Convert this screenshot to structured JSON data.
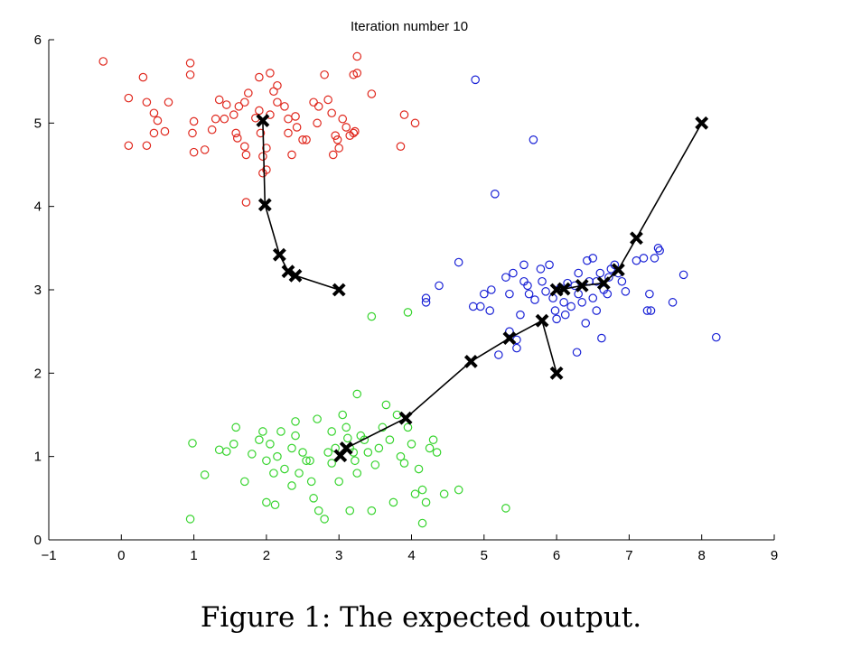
{
  "chart_data": {
    "type": "scatter",
    "title": "Iteration number 10",
    "xlabel": "",
    "ylabel": "",
    "xlim": [
      -1,
      9
    ],
    "ylim": [
      0,
      6
    ],
    "xticks": [
      "−1",
      "0",
      "1",
      "2",
      "3",
      "4",
      "5",
      "6",
      "7",
      "8",
      "9"
    ],
    "yticks": [
      "0",
      "1",
      "2",
      "3",
      "4",
      "5",
      "6"
    ],
    "grid": false,
    "marker": "open-circle",
    "series": [
      {
        "color": "#e0281e",
        "points": [
          [
            -0.25,
            5.74
          ],
          [
            0.3,
            5.55
          ],
          [
            0.95,
            5.72
          ],
          [
            0.95,
            5.58
          ],
          [
            0.1,
            5.3
          ],
          [
            0.35,
            5.25
          ],
          [
            0.65,
            5.25
          ],
          [
            0.45,
            5.12
          ],
          [
            0.5,
            5.03
          ],
          [
            0.6,
            4.9
          ],
          [
            0.45,
            4.88
          ],
          [
            0.35,
            4.73
          ],
          [
            0.1,
            4.73
          ],
          [
            1.0,
            5.02
          ],
          [
            0.98,
            4.88
          ],
          [
            1.0,
            4.65
          ],
          [
            1.15,
            4.68
          ],
          [
            1.25,
            4.92
          ],
          [
            1.35,
            5.28
          ],
          [
            1.45,
            5.22
          ],
          [
            1.3,
            5.05
          ],
          [
            1.42,
            5.05
          ],
          [
            1.55,
            5.1
          ],
          [
            1.62,
            5.2
          ],
          [
            1.75,
            5.36
          ],
          [
            1.7,
            5.25
          ],
          [
            1.9,
            5.55
          ],
          [
            1.9,
            5.15
          ],
          [
            1.58,
            4.88
          ],
          [
            1.6,
            4.82
          ],
          [
            1.7,
            4.72
          ],
          [
            1.72,
            4.62
          ],
          [
            1.92,
            4.88
          ],
          [
            1.85,
            5.06
          ],
          [
            1.95,
            4.6
          ],
          [
            2.05,
            5.6
          ],
          [
            2.15,
            5.45
          ],
          [
            2.1,
            5.38
          ],
          [
            2.15,
            5.25
          ],
          [
            2.25,
            5.2
          ],
          [
            2.05,
            5.1
          ],
          [
            2.3,
            5.05
          ],
          [
            2.4,
            5.08
          ],
          [
            2.42,
            4.95
          ],
          [
            2.3,
            4.88
          ],
          [
            2.5,
            4.8
          ],
          [
            2.0,
            4.7
          ],
          [
            2.35,
            4.62
          ],
          [
            2.0,
            4.44
          ],
          [
            1.95,
            4.4
          ],
          [
            2.65,
            5.25
          ],
          [
            2.72,
            5.2
          ],
          [
            2.85,
            5.28
          ],
          [
            2.9,
            5.12
          ],
          [
            2.7,
            5.0
          ],
          [
            2.55,
            4.8
          ],
          [
            2.95,
            4.85
          ],
          [
            2.98,
            4.8
          ],
          [
            3.05,
            5.05
          ],
          [
            3.1,
            4.95
          ],
          [
            3.2,
            4.88
          ],
          [
            3.15,
            4.85
          ],
          [
            3.22,
            4.9
          ],
          [
            2.92,
            4.62
          ],
          [
            3.0,
            4.7
          ],
          [
            2.8,
            5.58
          ],
          [
            3.2,
            5.58
          ],
          [
            3.25,
            5.6
          ],
          [
            3.25,
            5.8
          ],
          [
            3.45,
            5.35
          ],
          [
            3.9,
            5.1
          ],
          [
            4.05,
            5.0
          ],
          [
            3.85,
            4.72
          ],
          [
            1.72,
            4.05
          ]
        ]
      },
      {
        "color": "#1a22d6",
        "points": [
          [
            4.88,
            5.52
          ],
          [
            5.68,
            4.8
          ],
          [
            5.15,
            4.15
          ],
          [
            4.2,
            2.9
          ],
          [
            4.2,
            2.85
          ],
          [
            4.38,
            3.05
          ],
          [
            4.65,
            3.33
          ],
          [
            4.85,
            2.8
          ],
          [
            4.95,
            2.8
          ],
          [
            5.0,
            2.95
          ],
          [
            5.08,
            2.75
          ],
          [
            5.1,
            3.0
          ],
          [
            5.2,
            2.22
          ],
          [
            5.3,
            3.15
          ],
          [
            5.35,
            2.95
          ],
          [
            5.4,
            3.2
          ],
          [
            5.35,
            2.5
          ],
          [
            5.45,
            2.4
          ],
          [
            5.45,
            2.3
          ],
          [
            5.5,
            2.7
          ],
          [
            5.55,
            3.1
          ],
          [
            5.6,
            3.05
          ],
          [
            5.55,
            3.3
          ],
          [
            5.62,
            2.95
          ],
          [
            5.7,
            2.88
          ],
          [
            5.78,
            3.25
          ],
          [
            5.8,
            3.1
          ],
          [
            5.85,
            2.98
          ],
          [
            5.9,
            3.3
          ],
          [
            5.95,
            2.9
          ],
          [
            5.98,
            2.75
          ],
          [
            6.0,
            2.65
          ],
          [
            6.05,
            3.02
          ],
          [
            6.1,
            2.85
          ],
          [
            6.12,
            2.7
          ],
          [
            6.2,
            2.8
          ],
          [
            6.25,
            3.05
          ],
          [
            6.3,
            3.2
          ],
          [
            6.3,
            2.95
          ],
          [
            6.35,
            2.85
          ],
          [
            6.4,
            2.6
          ],
          [
            6.42,
            3.35
          ],
          [
            6.45,
            3.1
          ],
          [
            6.5,
            2.9
          ],
          [
            6.55,
            2.75
          ],
          [
            6.6,
            3.2
          ],
          [
            6.65,
            3.0
          ],
          [
            6.7,
            2.95
          ],
          [
            6.72,
            3.15
          ],
          [
            6.75,
            3.25
          ],
          [
            6.8,
            3.3
          ],
          [
            6.85,
            3.2
          ],
          [
            6.9,
            3.1
          ],
          [
            6.95,
            2.98
          ],
          [
            6.62,
            2.42
          ],
          [
            6.28,
            2.25
          ],
          [
            7.1,
            3.35
          ],
          [
            7.2,
            3.38
          ],
          [
            7.28,
            2.95
          ],
          [
            7.25,
            2.75
          ],
          [
            7.3,
            2.75
          ],
          [
            7.35,
            3.38
          ],
          [
            7.42,
            3.47
          ],
          [
            7.4,
            3.5
          ],
          [
            7.6,
            2.85
          ],
          [
            7.75,
            3.18
          ],
          [
            8.2,
            2.43
          ],
          [
            6.5,
            3.38
          ],
          [
            6.55,
            3.1
          ],
          [
            6.15,
            3.08
          ]
        ]
      },
      {
        "color": "#37d42e",
        "points": [
          [
            0.98,
            1.16
          ],
          [
            0.95,
            0.25
          ],
          [
            1.15,
            0.78
          ],
          [
            1.35,
            1.08
          ],
          [
            1.45,
            1.06
          ],
          [
            1.55,
            1.15
          ],
          [
            1.58,
            1.35
          ],
          [
            1.7,
            0.7
          ],
          [
            1.8,
            1.03
          ],
          [
            1.9,
            1.2
          ],
          [
            1.95,
            1.3
          ],
          [
            2.05,
            1.15
          ],
          [
            2.0,
            0.95
          ],
          [
            2.1,
            0.8
          ],
          [
            2.15,
            1.0
          ],
          [
            2.2,
            1.3
          ],
          [
            2.25,
            0.85
          ],
          [
            2.35,
            0.65
          ],
          [
            2.4,
            1.25
          ],
          [
            2.4,
            1.42
          ],
          [
            2.45,
            0.8
          ],
          [
            2.5,
            1.05
          ],
          [
            2.55,
            0.95
          ],
          [
            2.6,
            0.95
          ],
          [
            2.62,
            0.7
          ],
          [
            2.65,
            0.5
          ],
          [
            2.7,
            1.45
          ],
          [
            2.72,
            0.35
          ],
          [
            2.8,
            0.25
          ],
          [
            2.85,
            1.05
          ],
          [
            2.9,
            0.92
          ],
          [
            2.95,
            1.1
          ],
          [
            3.0,
            0.7
          ],
          [
            3.05,
            1.5
          ],
          [
            3.1,
            1.35
          ],
          [
            3.12,
            1.22
          ],
          [
            3.15,
            1.1
          ],
          [
            3.2,
            1.05
          ],
          [
            3.25,
            0.8
          ],
          [
            3.3,
            1.25
          ],
          [
            3.35,
            1.2
          ],
          [
            3.4,
            1.05
          ],
          [
            3.45,
            0.35
          ],
          [
            3.5,
            0.9
          ],
          [
            3.55,
            1.1
          ],
          [
            3.6,
            1.35
          ],
          [
            3.65,
            1.62
          ],
          [
            3.7,
            1.2
          ],
          [
            3.75,
            0.45
          ],
          [
            3.8,
            1.5
          ],
          [
            3.85,
            1.0
          ],
          [
            3.9,
            0.92
          ],
          [
            3.95,
            1.35
          ],
          [
            4.0,
            1.15
          ],
          [
            4.05,
            0.55
          ],
          [
            4.1,
            0.85
          ],
          [
            4.15,
            0.6
          ],
          [
            4.2,
            0.45
          ],
          [
            4.25,
            1.1
          ],
          [
            4.3,
            1.2
          ],
          [
            4.35,
            1.05
          ],
          [
            4.45,
            0.55
          ],
          [
            4.65,
            0.6
          ],
          [
            4.15,
            0.2
          ],
          [
            5.3,
            0.38
          ],
          [
            3.45,
            2.68
          ],
          [
            3.95,
            2.73
          ],
          [
            3.25,
            1.75
          ],
          [
            2.0,
            0.45
          ],
          [
            2.12,
            0.42
          ],
          [
            3.15,
            0.35
          ],
          [
            3.22,
            0.95
          ],
          [
            2.35,
            1.1
          ],
          [
            2.9,
            1.3
          ]
        ]
      }
    ],
    "centroid_paths": [
      {
        "points": [
          [
            3.0,
            3.0
          ],
          [
            2.4,
            3.17
          ],
          [
            2.3,
            3.22
          ],
          [
            2.18,
            3.42
          ],
          [
            1.98,
            4.02
          ],
          [
            1.95,
            5.03
          ]
        ]
      },
      {
        "points": [
          [
            8.0,
            5.0
          ],
          [
            7.1,
            3.62
          ],
          [
            6.85,
            3.24
          ],
          [
            6.65,
            3.08
          ],
          [
            6.35,
            3.05
          ],
          [
            6.1,
            3.01
          ],
          [
            6.0,
            3.0
          ]
        ]
      },
      {
        "points": [
          [
            6.0,
            2.0
          ],
          [
            5.8,
            2.63
          ],
          [
            5.35,
            2.42
          ],
          [
            4.82,
            2.14
          ],
          [
            3.92,
            1.46
          ],
          [
            3.1,
            1.1
          ],
          [
            3.02,
            1.01
          ]
        ]
      }
    ]
  },
  "caption": "Figure 1: The expected output."
}
